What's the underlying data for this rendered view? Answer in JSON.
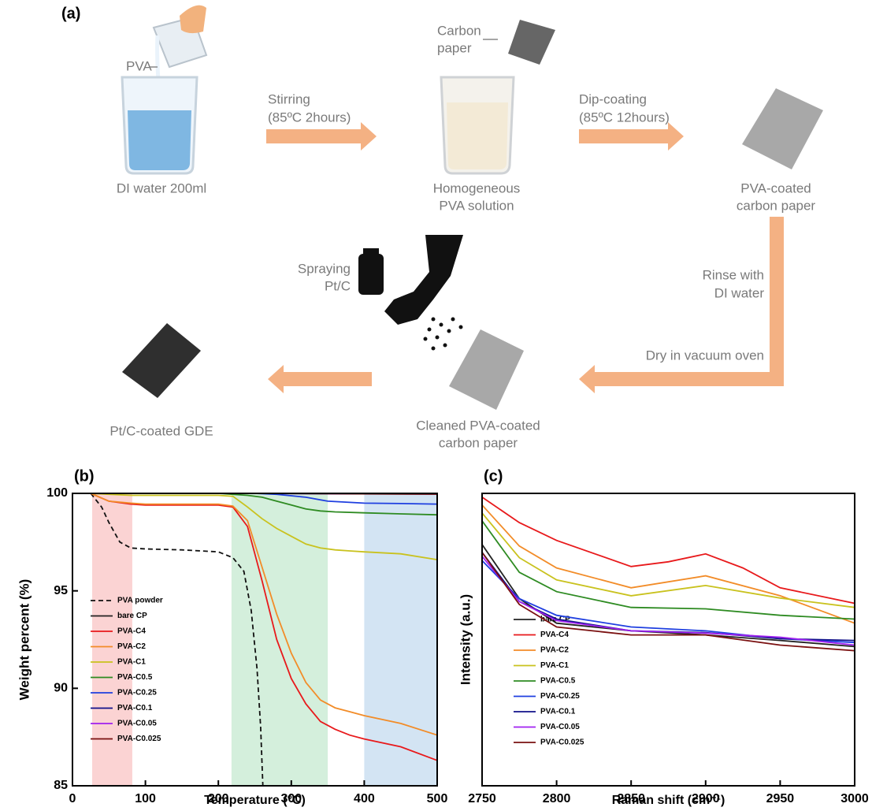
{
  "panel_a": {
    "label": "(a)",
    "pva": "PVA",
    "water": "DI water 200ml",
    "step1": [
      "Stirring",
      "(85ºC 2hours)"
    ],
    "carbon": [
      "Carbon",
      "paper"
    ],
    "solution": [
      "Homogeneous",
      "PVA solution"
    ],
    "step2": [
      "Dip-coating",
      "(85ºC 12hours)"
    ],
    "coated": [
      "PVA-coated",
      "carbon paper"
    ],
    "rinse": [
      "Rinse with",
      "DI water"
    ],
    "dry": "Dry in vacuum oven",
    "spray": [
      "Spraying",
      "Pt/C"
    ],
    "cleaned": [
      "Cleaned PVA-coated",
      "carbon paper"
    ],
    "gde": "Pt/C-coated GDE"
  },
  "chart_data": [
    {
      "type": "line",
      "title": "(b)",
      "x_label": "Temperature (°C)",
      "y_label": "Weight percent (%)",
      "xlim": [
        0,
        500
      ],
      "ylim": [
        85,
        100
      ],
      "xticks": [
        0,
        100,
        200,
        300,
        400,
        500
      ],
      "yticks": [
        85,
        90,
        95,
        100
      ],
      "legend": "lower left",
      "bands": [
        {
          "from": 27,
          "to": 82,
          "color": "#fbd3d3"
        },
        {
          "from": 218,
          "to": 350,
          "color": "#d4efdc"
        },
        {
          "from": 400,
          "to": 500,
          "color": "#d3e4f3"
        }
      ],
      "series": [
        {
          "name": "PVA powder",
          "color": "#111111",
          "dashed": true,
          "x": [
            25,
            40,
            50,
            65,
            80,
            100,
            150,
            200,
            220,
            235,
            245,
            253,
            258,
            261
          ],
          "values": [
            100,
            99.3,
            98.5,
            97.5,
            97.2,
            97.15,
            97.1,
            97.0,
            96.7,
            96.0,
            94.0,
            91.0,
            88.0,
            85.0
          ]
        },
        {
          "name": "bare CP",
          "color": "#222222",
          "x": [
            25,
            250,
            500
          ],
          "values": [
            100,
            100,
            99.98
          ]
        },
        {
          "name": "PVA-C4",
          "color": "#e8191b",
          "x": [
            25,
            50,
            80,
            100,
            150,
            200,
            220,
            240,
            260,
            280,
            300,
            320,
            340,
            360,
            380,
            400,
            450,
            500
          ],
          "values": [
            100,
            99.6,
            99.45,
            99.4,
            99.4,
            99.4,
            99.3,
            98.3,
            95.5,
            92.5,
            90.5,
            89.2,
            88.3,
            87.9,
            87.6,
            87.4,
            87.0,
            86.3
          ]
        },
        {
          "name": "PVA-C2",
          "color": "#f28c28",
          "x": [
            25,
            50,
            80,
            100,
            150,
            200,
            220,
            240,
            260,
            280,
            300,
            320,
            340,
            360,
            380,
            400,
            450,
            500
          ],
          "values": [
            100,
            99.6,
            99.5,
            99.45,
            99.45,
            99.45,
            99.35,
            98.6,
            96.2,
            93.8,
            91.8,
            90.3,
            89.4,
            89.0,
            88.8,
            88.6,
            88.2,
            87.6
          ]
        },
        {
          "name": "PVA-C1",
          "color": "#c9c21e",
          "x": [
            25,
            50,
            80,
            100,
            150,
            200,
            220,
            240,
            260,
            280,
            300,
            320,
            340,
            360,
            380,
            400,
            450,
            500
          ],
          "values": [
            100,
            99.95,
            99.9,
            99.9,
            99.9,
            99.9,
            99.85,
            99.3,
            98.7,
            98.2,
            97.8,
            97.4,
            97.2,
            97.1,
            97.05,
            97.0,
            96.9,
            96.6
          ]
        },
        {
          "name": "PVA-C0.5",
          "color": "#2e8b22",
          "x": [
            25,
            200,
            240,
            260,
            280,
            300,
            320,
            340,
            360,
            400,
            450,
            500
          ],
          "values": [
            100,
            100,
            99.9,
            99.8,
            99.6,
            99.4,
            99.2,
            99.1,
            99.05,
            99.0,
            98.95,
            98.9
          ]
        },
        {
          "name": "PVA-C0.25",
          "color": "#1f3fe0",
          "x": [
            25,
            250,
            280,
            320,
            350,
            400,
            450,
            500
          ],
          "values": [
            100,
            100,
            99.95,
            99.8,
            99.6,
            99.5,
            99.48,
            99.45
          ]
        },
        {
          "name": "PVA-C0.1",
          "color": "#10108a",
          "x": [
            25,
            250,
            500
          ],
          "values": [
            100,
            100,
            99.97
          ]
        },
        {
          "name": "PVA-C0.05",
          "color": "#a020f0",
          "x": [
            25,
            250,
            500
          ],
          "values": [
            100,
            100,
            99.97
          ]
        },
        {
          "name": "PVA-C0.025",
          "color": "#7a1010",
          "x": [
            25,
            250,
            500
          ],
          "values": [
            100,
            100,
            99.96
          ]
        }
      ]
    },
    {
      "type": "line",
      "title": "(c)",
      "x_label": "Raman shift (cm⁻¹)",
      "y_label": "Intensity (a.u.)",
      "xlim": [
        2750,
        3000
      ],
      "ylim": [
        0,
        100
      ],
      "xticks": [
        2750,
        2800,
        2850,
        2900,
        2950,
        3000
      ],
      "legend": "lower left",
      "series": [
        {
          "name": "bare CP",
          "color": "#222222",
          "x": [
            2750,
            2775,
            2800,
            2850,
            2900,
            2950,
            3000
          ],
          "values": [
            82.5,
            64,
            55.6,
            53,
            51.6,
            49.7,
            47.6
          ]
        },
        {
          "name": "PVA-C4",
          "color": "#e8191b",
          "x": [
            2750,
            2775,
            2800,
            2850,
            2875,
            2900,
            2925,
            2950,
            3000
          ],
          "values": [
            98.7,
            90,
            83.9,
            75,
            76.6,
            79.3,
            74.5,
            67.7,
            62.4
          ]
        },
        {
          "name": "PVA-C2",
          "color": "#f28c28",
          "x": [
            2750,
            2775,
            2800,
            2850,
            2900,
            2950,
            3000
          ],
          "values": [
            96,
            82,
            74.5,
            67.7,
            71.8,
            65,
            55.6
          ]
        },
        {
          "name": "PVA-C1",
          "color": "#c9c21e",
          "x": [
            2750,
            2775,
            2800,
            2850,
            2900,
            2950,
            3000
          ],
          "values": [
            93.3,
            78,
            70.4,
            65,
            68.5,
            64.2,
            61
          ]
        },
        {
          "name": "PVA-C0.5",
          "color": "#2e8b22",
          "x": [
            2750,
            2775,
            2800,
            2850,
            2900,
            2950,
            3000
          ],
          "values": [
            90.6,
            73,
            66.4,
            61,
            60.5,
            58.3,
            57
          ]
        },
        {
          "name": "PVA-C0.25",
          "color": "#1f3fe0",
          "x": [
            2750,
            2775,
            2800,
            2850,
            2900,
            2950,
            3000
          ],
          "values": [
            77,
            64,
            58.3,
            54.3,
            53,
            50.3,
            49
          ]
        },
        {
          "name": "PVA-C0.1",
          "color": "#10108a",
          "x": [
            2750,
            2775,
            2800,
            2850,
            2900,
            2950,
            3000
          ],
          "values": [
            79.8,
            63,
            57,
            53,
            52.4,
            50.3,
            49.7
          ]
        },
        {
          "name": "PVA-C0.05",
          "color": "#a020f0",
          "x": [
            2750,
            2775,
            2800,
            2850,
            2900,
            2950,
            3000
          ],
          "values": [
            78.5,
            63,
            56.5,
            53,
            52.2,
            50.8,
            48.1
          ]
        },
        {
          "name": "PVA-C0.025",
          "color": "#7a1010",
          "x": [
            2750,
            2775,
            2800,
            2850,
            2900,
            2950,
            3000
          ],
          "values": [
            79.8,
            62,
            54.3,
            51.6,
            51.6,
            48.1,
            46.2
          ]
        }
      ]
    }
  ]
}
